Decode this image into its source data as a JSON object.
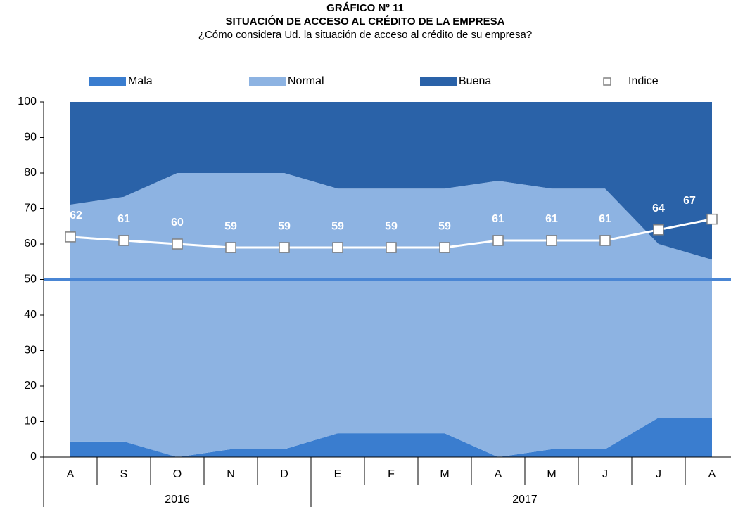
{
  "chart_data": {
    "type": "stacked-area",
    "title": "GRÁFICO Nº 11",
    "subtitle": "SITUACIÓN DE ACCESO AL CRÉDITO DE LA EMPRESA",
    "question": "¿Cómo considera Ud. la situación de acceso al crédito de su empresa?",
    "categories": [
      "A",
      "S",
      "O",
      "N",
      "D",
      "E",
      "F",
      "M",
      "A",
      "M",
      "J",
      "J",
      "A"
    ],
    "category_groups": [
      "2016",
      "2016",
      "2016",
      "2016",
      "2016",
      "2017",
      "2017",
      "2017",
      "2017",
      "2017",
      "2017",
      "2017",
      "2017"
    ],
    "series": [
      {
        "name": "Mala",
        "color": "#3a7dcf",
        "values": [
          4.4,
          4.4,
          0,
          2.2,
          2.2,
          6.7,
          6.7,
          6.7,
          0,
          2.2,
          2.2,
          11.1,
          11.1
        ]
      },
      {
        "name": "Normal",
        "color": "#8db3e2",
        "values": [
          66.7,
          68.9,
          80,
          77.8,
          77.8,
          68.9,
          68.9,
          68.9,
          77.8,
          73.4,
          73.4,
          48.9,
          44.5
        ]
      },
      {
        "name": "Buena",
        "color": "#2a62a8",
        "values": [
          28.9,
          26.7,
          20,
          20,
          20,
          24.4,
          24.4,
          24.4,
          22.2,
          24.4,
          24.4,
          40,
          44.4
        ]
      },
      {
        "name": "Indice",
        "type": "line",
        "color": "#ffffff",
        "marker": "square",
        "values": [
          62,
          61,
          60,
          59,
          59,
          59,
          59,
          59,
          61,
          61,
          61,
          64,
          67
        ]
      }
    ],
    "reference_line": 50,
    "reference_color": "#4a86d4",
    "ylim": [
      0,
      100
    ],
    "yticks": [
      0,
      10,
      20,
      30,
      40,
      50,
      60,
      70,
      80,
      90,
      100
    ]
  }
}
